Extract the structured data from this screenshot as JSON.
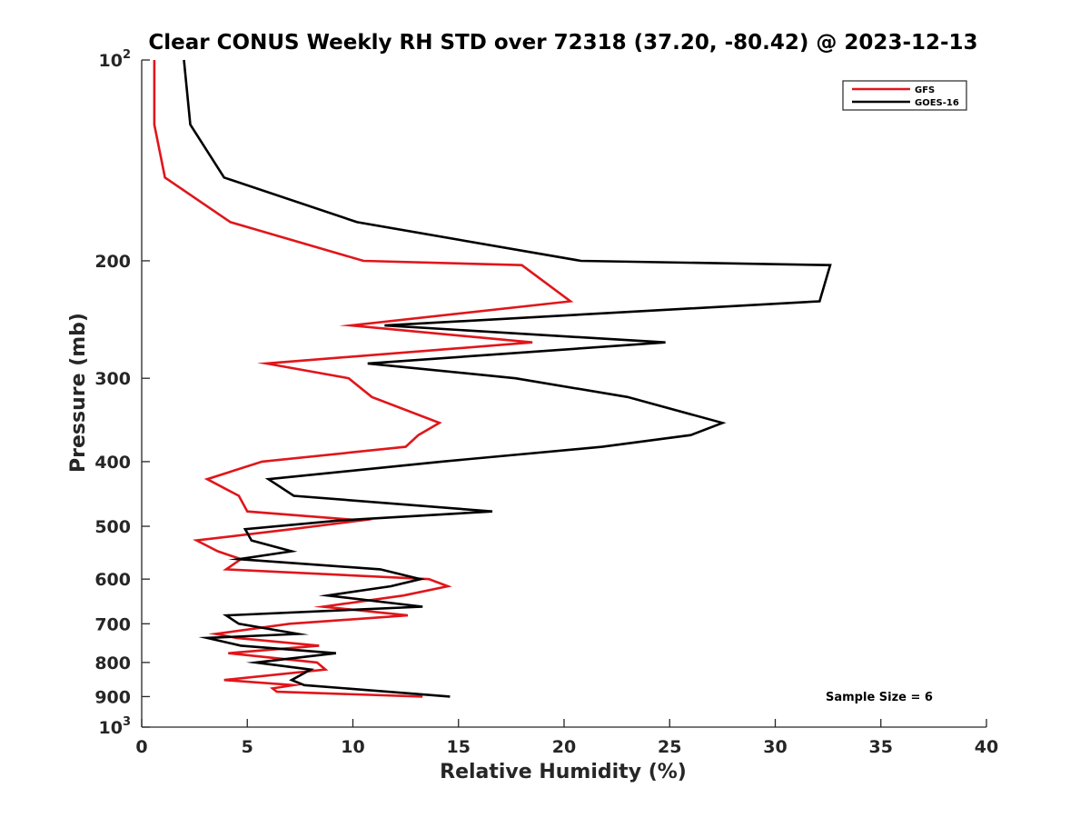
{
  "chart_data": {
    "type": "line",
    "title": "Clear CONUS Weekly RH STD over 72318 (37.20, -80.42) @ 2023-12-13",
    "xlabel": "Relative Humidity (%)",
    "ylabel": "Pressure (mb)",
    "xlim": [
      0,
      40
    ],
    "ylim": [
      100,
      1000
    ],
    "y_scale": "log",
    "y_reversed": true,
    "x_ticks": [
      "0",
      "5",
      "10",
      "15",
      "20",
      "25",
      "30",
      "35",
      "40"
    ],
    "y_ticks": [
      {
        "value": 100,
        "base": "10",
        "exp": "2"
      },
      {
        "value": 200,
        "label": "200"
      },
      {
        "value": 300,
        "label": "300"
      },
      {
        "value": 400,
        "label": "400"
      },
      {
        "value": 500,
        "label": "500"
      },
      {
        "value": 600,
        "label": "600"
      },
      {
        "value": 700,
        "label": "700"
      },
      {
        "value": 800,
        "label": "800"
      },
      {
        "value": 900,
        "label": "900"
      },
      {
        "value": 1000,
        "base": "10",
        "exp": "3"
      }
    ],
    "grid": false,
    "legend_position": "top-right",
    "annotation": "Sample Size = 6",
    "series": [
      {
        "name": "GFS",
        "color": "#e0161b",
        "points": [
          [
            0.6,
            100
          ],
          [
            0.6,
            125
          ],
          [
            1.1,
            150
          ],
          [
            4.2,
            175
          ],
          [
            10.5,
            200
          ],
          [
            18.0,
            203
          ],
          [
            20.3,
            230
          ],
          [
            9.9,
            250
          ],
          [
            18.5,
            265
          ],
          [
            5.9,
            285
          ],
          [
            9.8,
            300
          ],
          [
            10.9,
            320
          ],
          [
            14.1,
            350
          ],
          [
            13.1,
            365
          ],
          [
            12.5,
            380
          ],
          [
            5.7,
            400
          ],
          [
            3.1,
            425
          ],
          [
            4.6,
            450
          ],
          [
            5.0,
            475
          ],
          [
            10.4,
            490
          ],
          [
            7.1,
            505
          ],
          [
            2.6,
            525
          ],
          [
            3.6,
            545
          ],
          [
            4.7,
            560
          ],
          [
            4.0,
            580
          ],
          [
            13.6,
            600
          ],
          [
            14.5,
            615
          ],
          [
            12.4,
            635
          ],
          [
            8.6,
            660
          ],
          [
            12.6,
            680
          ],
          [
            7.0,
            700
          ],
          [
            3.5,
            725
          ],
          [
            4.5,
            735
          ],
          [
            8.4,
            755
          ],
          [
            4.1,
            775
          ],
          [
            8.3,
            800
          ],
          [
            8.7,
            820
          ],
          [
            3.9,
            850
          ],
          [
            7.2,
            865
          ],
          [
            6.2,
            875
          ],
          [
            6.4,
            885
          ],
          [
            13.3,
            900
          ]
        ]
      },
      {
        "name": "GOES-16",
        "color": "#000000",
        "points": [
          [
            2.0,
            100
          ],
          [
            2.3,
            125
          ],
          [
            3.9,
            150
          ],
          [
            10.2,
            175
          ],
          [
            20.8,
            200
          ],
          [
            32.6,
            203
          ],
          [
            32.1,
            230
          ],
          [
            11.5,
            250
          ],
          [
            24.8,
            265
          ],
          [
            10.7,
            285
          ],
          [
            17.7,
            300
          ],
          [
            23.0,
            320
          ],
          [
            27.5,
            350
          ],
          [
            26.0,
            365
          ],
          [
            21.8,
            380
          ],
          [
            14.2,
            400
          ],
          [
            6.0,
            425
          ],
          [
            7.2,
            450
          ],
          [
            16.6,
            475
          ],
          [
            9.4,
            490
          ],
          [
            4.9,
            505
          ],
          [
            5.2,
            525
          ],
          [
            7.1,
            545
          ],
          [
            4.6,
            560
          ],
          [
            11.3,
            580
          ],
          [
            13.2,
            600
          ],
          [
            11.8,
            615
          ],
          [
            8.8,
            635
          ],
          [
            13.3,
            660
          ],
          [
            4.0,
            680
          ],
          [
            4.6,
            700
          ],
          [
            7.4,
            725
          ],
          [
            3.1,
            735
          ],
          [
            4.7,
            755
          ],
          [
            9.2,
            775
          ],
          [
            5.4,
            800
          ],
          [
            8.0,
            820
          ],
          [
            7.1,
            850
          ],
          [
            7.7,
            865
          ],
          [
            14.6,
            900
          ]
        ]
      }
    ]
  }
}
